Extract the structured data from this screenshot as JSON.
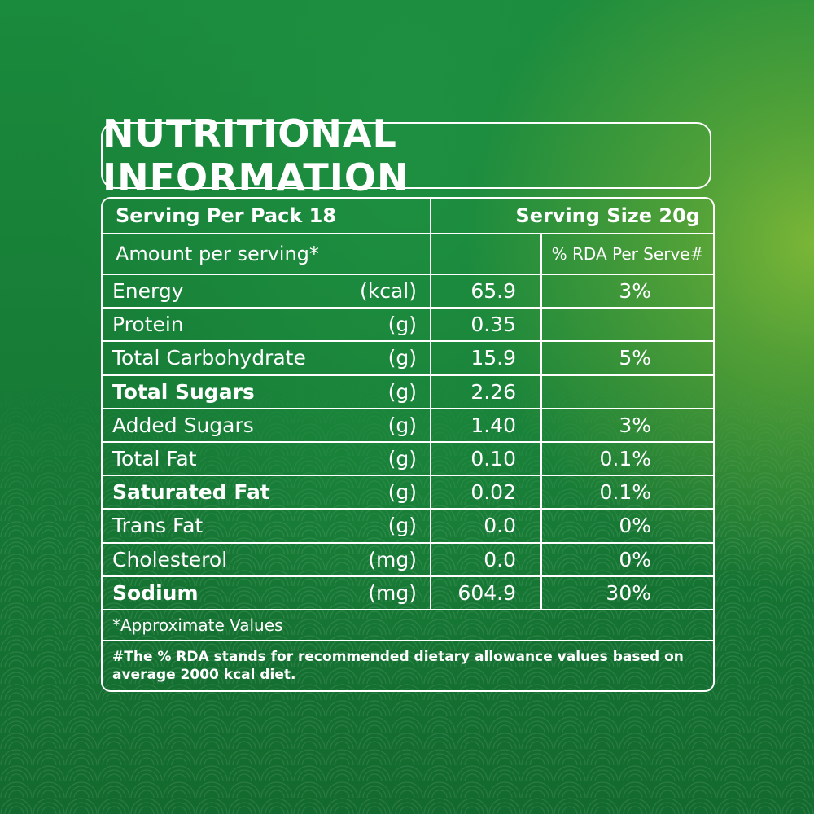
{
  "title": "NUTRITIONAL INFORMATION",
  "serving_per_pack": "Serving Per Pack 18",
  "serving_size": "Serving Size 20g",
  "amount_per_serving": "Amount per serving*",
  "rda_header": "% RDA Per Serve#",
  "rows": [
    {
      "name": "Energy",
      "unit": "(kcal)",
      "value": "65.9",
      "rda": "3%",
      "bold": false
    },
    {
      "name": "Protein",
      "unit": "(g)",
      "value": "0.35",
      "rda": "",
      "bold": false
    },
    {
      "name": "Total Carbohydrate",
      "unit": "(g)",
      "value": "15.9",
      "rda": "5%",
      "bold": false
    },
    {
      "name": "Total Sugars",
      "unit": "(g)",
      "value": "2.26",
      "rda": "",
      "bold": true
    },
    {
      "name": "Added Sugars",
      "unit": "(g)",
      "value": "1.40",
      "rda": "3%",
      "bold": false
    },
    {
      "name": "Total Fat",
      "unit": "(g)",
      "value": "0.10",
      "rda": "0.1%",
      "bold": false
    },
    {
      "name": "Saturated Fat",
      "unit": "(g)",
      "value": "0.02",
      "rda": "0.1%",
      "bold": true
    },
    {
      "name": "Trans Fat",
      "unit": "(g)",
      "value": "0.0",
      "rda": "0%",
      "bold": false
    },
    {
      "name": "Cholesterol",
      "unit": "(mg)",
      "value": "0.0",
      "rda": "0%",
      "bold": false
    },
    {
      "name": "Sodium",
      "unit": "(mg)",
      "value": "604.9",
      "rda": "30%",
      "bold": true
    }
  ],
  "approx_note": "*Approximate Values",
  "rda_note": "#The % RDA stands for recommended dietary allowance values based on average 2000 kcal diet."
}
